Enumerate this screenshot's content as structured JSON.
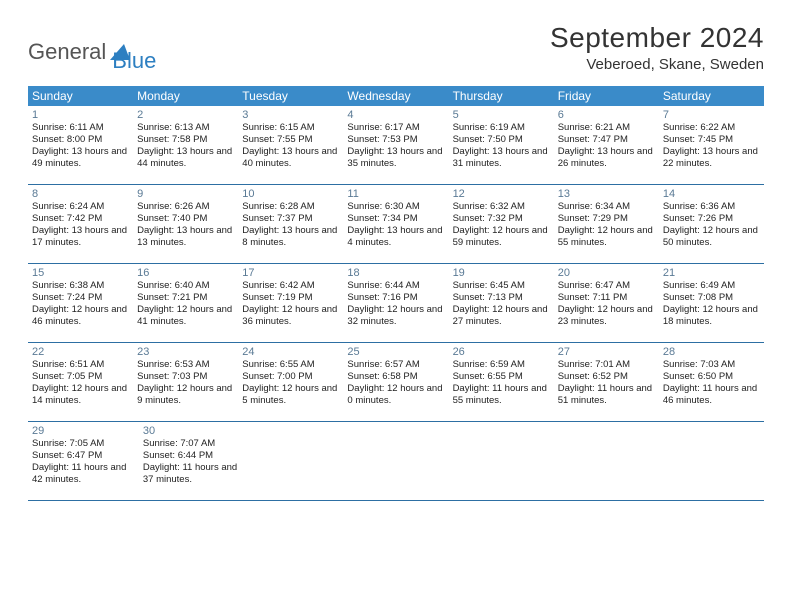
{
  "logo": {
    "text1": "General",
    "text2": "Blue"
  },
  "title": "September 2024",
  "location": "Veberoed, Skane, Sweden",
  "header_bg": "#3a8bc9",
  "border_color": "#2d6fa3",
  "weekdays": [
    "Sunday",
    "Monday",
    "Tuesday",
    "Wednesday",
    "Thursday",
    "Friday",
    "Saturday"
  ],
  "sunrise_label": "Sunrise:",
  "sunset_label": "Sunset:",
  "daylight_label": "Daylight:",
  "weeks": [
    [
      {
        "n": "1",
        "sr": "6:11 AM",
        "ss": "8:00 PM",
        "dl": "13 hours and 49 minutes."
      },
      {
        "n": "2",
        "sr": "6:13 AM",
        "ss": "7:58 PM",
        "dl": "13 hours and 44 minutes."
      },
      {
        "n": "3",
        "sr": "6:15 AM",
        "ss": "7:55 PM",
        "dl": "13 hours and 40 minutes."
      },
      {
        "n": "4",
        "sr": "6:17 AM",
        "ss": "7:53 PM",
        "dl": "13 hours and 35 minutes."
      },
      {
        "n": "5",
        "sr": "6:19 AM",
        "ss": "7:50 PM",
        "dl": "13 hours and 31 minutes."
      },
      {
        "n": "6",
        "sr": "6:21 AM",
        "ss": "7:47 PM",
        "dl": "13 hours and 26 minutes."
      },
      {
        "n": "7",
        "sr": "6:22 AM",
        "ss": "7:45 PM",
        "dl": "13 hours and 22 minutes."
      }
    ],
    [
      {
        "n": "8",
        "sr": "6:24 AM",
        "ss": "7:42 PM",
        "dl": "13 hours and 17 minutes."
      },
      {
        "n": "9",
        "sr": "6:26 AM",
        "ss": "7:40 PM",
        "dl": "13 hours and 13 minutes."
      },
      {
        "n": "10",
        "sr": "6:28 AM",
        "ss": "7:37 PM",
        "dl": "13 hours and 8 minutes."
      },
      {
        "n": "11",
        "sr": "6:30 AM",
        "ss": "7:34 PM",
        "dl": "13 hours and 4 minutes."
      },
      {
        "n": "12",
        "sr": "6:32 AM",
        "ss": "7:32 PM",
        "dl": "12 hours and 59 minutes."
      },
      {
        "n": "13",
        "sr": "6:34 AM",
        "ss": "7:29 PM",
        "dl": "12 hours and 55 minutes."
      },
      {
        "n": "14",
        "sr": "6:36 AM",
        "ss": "7:26 PM",
        "dl": "12 hours and 50 minutes."
      }
    ],
    [
      {
        "n": "15",
        "sr": "6:38 AM",
        "ss": "7:24 PM",
        "dl": "12 hours and 46 minutes."
      },
      {
        "n": "16",
        "sr": "6:40 AM",
        "ss": "7:21 PM",
        "dl": "12 hours and 41 minutes."
      },
      {
        "n": "17",
        "sr": "6:42 AM",
        "ss": "7:19 PM",
        "dl": "12 hours and 36 minutes."
      },
      {
        "n": "18",
        "sr": "6:44 AM",
        "ss": "7:16 PM",
        "dl": "12 hours and 32 minutes."
      },
      {
        "n": "19",
        "sr": "6:45 AM",
        "ss": "7:13 PM",
        "dl": "12 hours and 27 minutes."
      },
      {
        "n": "20",
        "sr": "6:47 AM",
        "ss": "7:11 PM",
        "dl": "12 hours and 23 minutes."
      },
      {
        "n": "21",
        "sr": "6:49 AM",
        "ss": "7:08 PM",
        "dl": "12 hours and 18 minutes."
      }
    ],
    [
      {
        "n": "22",
        "sr": "6:51 AM",
        "ss": "7:05 PM",
        "dl": "12 hours and 14 minutes."
      },
      {
        "n": "23",
        "sr": "6:53 AM",
        "ss": "7:03 PM",
        "dl": "12 hours and 9 minutes."
      },
      {
        "n": "24",
        "sr": "6:55 AM",
        "ss": "7:00 PM",
        "dl": "12 hours and 5 minutes."
      },
      {
        "n": "25",
        "sr": "6:57 AM",
        "ss": "6:58 PM",
        "dl": "12 hours and 0 minutes."
      },
      {
        "n": "26",
        "sr": "6:59 AM",
        "ss": "6:55 PM",
        "dl": "11 hours and 55 minutes."
      },
      {
        "n": "27",
        "sr": "7:01 AM",
        "ss": "6:52 PM",
        "dl": "11 hours and 51 minutes."
      },
      {
        "n": "28",
        "sr": "7:03 AM",
        "ss": "6:50 PM",
        "dl": "11 hours and 46 minutes."
      }
    ],
    [
      {
        "n": "29",
        "sr": "7:05 AM",
        "ss": "6:47 PM",
        "dl": "11 hours and 42 minutes."
      },
      {
        "n": "30",
        "sr": "7:07 AM",
        "ss": "6:44 PM",
        "dl": "11 hours and 37 minutes."
      },
      null,
      null,
      null,
      null,
      null
    ]
  ]
}
